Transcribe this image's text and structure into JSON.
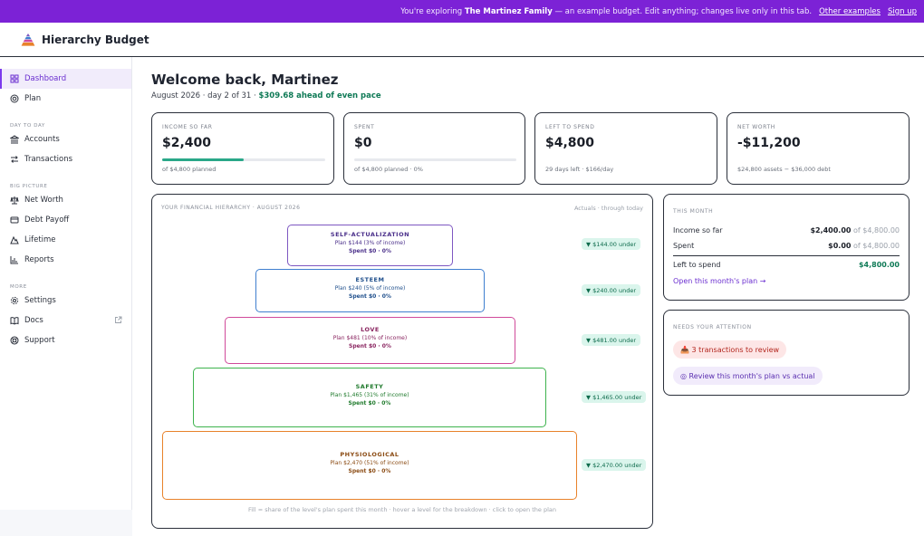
{
  "banner": {
    "prefix": "You're exploring",
    "family": "The Martinez Family",
    "suffix": "— an example budget. Edit anything; changes live only in this tab.",
    "other_examples": "Other examples",
    "sign_up": "Sign up",
    "color": "#7c22d6"
  },
  "header": {
    "brand": "Hierarchy Budget",
    "logo_icon": "pyramid-logo"
  },
  "sidebar": {
    "top": [
      {
        "label": "Dashboard",
        "icon": "grid-icon",
        "active": true
      },
      {
        "label": "Plan",
        "icon": "target-icon"
      }
    ],
    "sections": [
      {
        "title": "DAY TO DAY",
        "items": [
          {
            "label": "Accounts",
            "icon": "bank-icon"
          },
          {
            "label": "Transactions",
            "icon": "swap-icon"
          }
        ]
      },
      {
        "title": "BIG PICTURE",
        "items": [
          {
            "label": "Net Worth",
            "icon": "scale-icon"
          },
          {
            "label": "Debt Payoff",
            "icon": "card-icon"
          },
          {
            "label": "Lifetime",
            "icon": "mountain-icon"
          },
          {
            "label": "Reports",
            "icon": "bar-chart-icon"
          }
        ]
      },
      {
        "title": "MORE",
        "items": [
          {
            "label": "Settings",
            "icon": "gear-icon"
          },
          {
            "label": "Docs",
            "icon": "book-icon",
            "external": true
          },
          {
            "label": "Support",
            "icon": "lifebuoy-icon"
          }
        ]
      }
    ]
  },
  "welcome": {
    "title": "Welcome back, Martinez",
    "subline_prefix": "August 2026 · day 2 of 31 · ",
    "ahead": "$309.68 ahead of even pace"
  },
  "stats": [
    {
      "label": "INCOME SO FAR",
      "value": "$2,400",
      "note": "of $4,800 planned",
      "progress": 0.5
    },
    {
      "label": "SPENT",
      "value": "$0",
      "note": "of $4,800 planned · 0%",
      "progress": 0
    },
    {
      "label": "LEFT TO SPEND",
      "value": "$4,800",
      "note": "29 days left · $166/day"
    },
    {
      "label": "NET WORTH",
      "value": "-$11,200",
      "note": "$24,800 assets − $36,000 debt"
    }
  ],
  "hierarchy": {
    "title": "YOUR FINANCIAL HIERARCHY · AUGUST 2026",
    "subtitle": "Actuals · through today",
    "levels": [
      {
        "name": "SELF-ACTUALIZATION",
        "plan": "Plan $144 (3% of income)",
        "spent": "Spent $0 · 0%",
        "badge": "▼ $144.00 under",
        "color": "#7e57c2",
        "name_color": "#4a2f8a"
      },
      {
        "name": "ESTEEM",
        "plan": "Plan $240 (5% of income)",
        "spent": "Spent $0 · 0%",
        "badge": "▼ $240.00 under",
        "color": "#3f7fcf",
        "name_color": "#1f4f8c"
      },
      {
        "name": "LOVE",
        "plan": "Plan $481 (10% of income)",
        "spent": "Spent $0 · 0%",
        "badge": "▼ $481.00 under",
        "color": "#d04a9a",
        "name_color": "#8a2560"
      },
      {
        "name": "SAFETY",
        "plan": "Plan $1,465 (31% of income)",
        "spent": "Spent $0 · 0%",
        "badge": "▼ $1,465.00 under",
        "color": "#3db34d",
        "name_color": "#1f7a2c"
      },
      {
        "name": "PHYSIOLOGICAL",
        "plan": "Plan $2,470 (51% of income)",
        "spent": "Spent $0 · 0%",
        "badge": "▼ $2,470.00 under",
        "color": "#e8822a",
        "name_color": "#8a4a12"
      }
    ],
    "footer": "Fill = share of the level's plan spent this month · hover a level for the breakdown · click to open the plan"
  },
  "this_month": {
    "title": "THIS MONTH",
    "rows": [
      {
        "label": "Income so far",
        "value": "$2,400.00",
        "of": " of $4,800.00"
      },
      {
        "label": "Spent",
        "value": "$0.00",
        "of": " of $4,800.00"
      }
    ],
    "total_label": "Left to spend",
    "total_value": "$4,800.00",
    "link": "Open this month's plan →"
  },
  "attention": {
    "title": "NEEDS YOUR ATTENTION",
    "review_transactions": "📥 3 transactions to review",
    "review_plan": "◎ Review this month's plan vs actual"
  }
}
